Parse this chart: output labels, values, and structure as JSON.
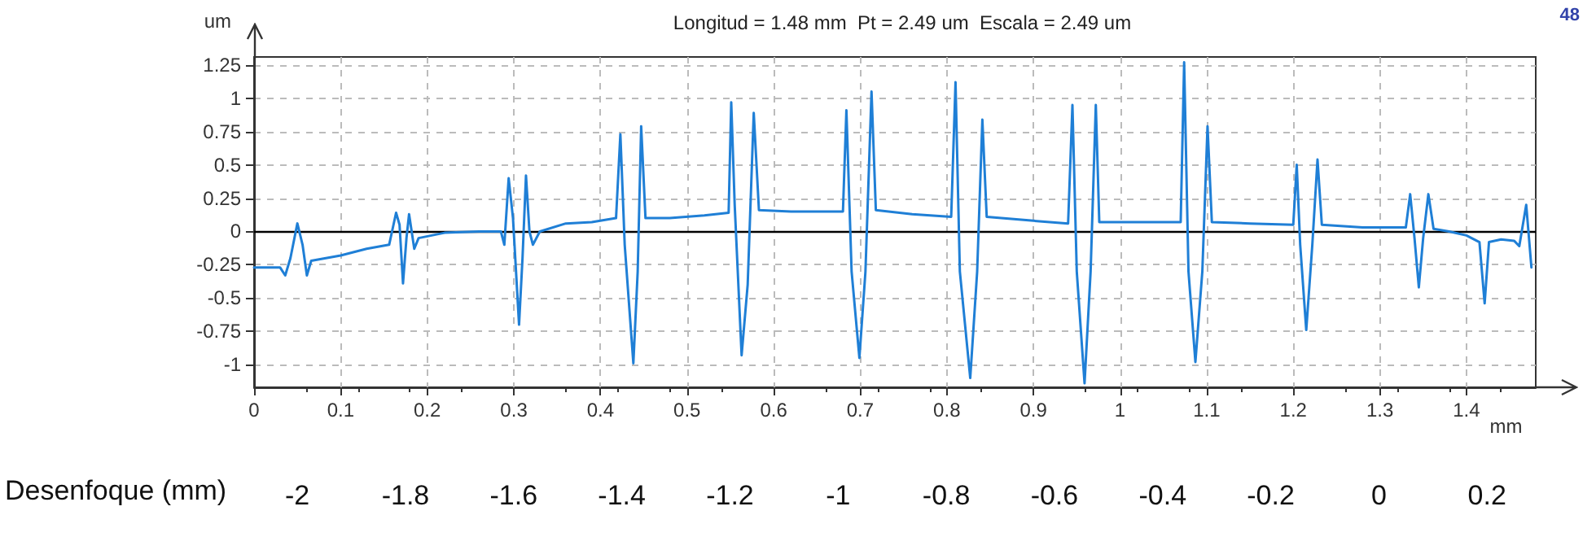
{
  "chart_data": {
    "type": "line",
    "title": "Longitud = 1.48 mm  Pt = 2.49 um  Escala = 2.49 um",
    "xlabel": "mm",
    "ylabel": "um",
    "x2label": "Desenfoque (mm)",
    "annotations": [
      "48"
    ],
    "x": [
      0,
      0.03,
      0.036,
      0.042,
      0.05,
      0.056,
      0.061,
      0.066,
      0.1,
      0.13,
      0.156,
      0.164,
      0.168,
      0.172,
      0.176,
      0.179,
      0.182,
      0.185,
      0.19,
      0.22,
      0.26,
      0.285,
      0.289,
      0.294,
      0.299,
      0.306,
      0.31,
      0.314,
      0.318,
      0.322,
      0.33,
      0.36,
      0.39,
      0.418,
      0.423,
      0.428,
      0.438,
      0.443,
      0.447,
      0.452,
      0.48,
      0.52,
      0.548,
      0.551,
      0.555,
      0.563,
      0.57,
      0.577,
      0.583,
      0.62,
      0.68,
      0.684,
      0.69,
      0.699,
      0.706,
      0.713,
      0.718,
      0.76,
      0.805,
      0.81,
      0.815,
      0.827,
      0.835,
      0.841,
      0.846,
      0.9,
      0.94,
      0.945,
      0.95,
      0.959,
      0.966,
      0.972,
      0.976,
      1.02,
      1.07,
      1.074,
      1.079,
      1.087,
      1.095,
      1.101,
      1.106,
      1.15,
      1.2,
      1.204,
      1.208,
      1.215,
      1.222,
      1.228,
      1.233,
      1.28,
      1.33,
      1.335,
      1.34,
      1.345,
      1.35,
      1.356,
      1.362,
      1.38,
      1.4,
      1.415,
      1.421,
      1.426,
      1.44,
      1.455,
      1.461,
      1.469,
      1.475
    ],
    "series": [
      {
        "color": "#1f7fd6",
        "values": [
          -0.27,
          -0.27,
          -0.33,
          -0.2,
          0.06,
          -0.1,
          -0.33,
          -0.22,
          -0.18,
          -0.13,
          -0.1,
          0.14,
          0.05,
          -0.39,
          -0.05,
          0.13,
          0.0,
          -0.13,
          -0.05,
          -0.01,
          0.0,
          0.0,
          -0.1,
          0.4,
          0.1,
          -0.7,
          -0.2,
          0.42,
          0.0,
          -0.1,
          0.0,
          0.06,
          0.07,
          0.1,
          0.73,
          -0.1,
          -0.99,
          -0.3,
          0.79,
          0.1,
          0.1,
          0.12,
          0.14,
          0.97,
          0.2,
          -0.93,
          -0.4,
          0.89,
          0.16,
          0.15,
          0.15,
          0.91,
          -0.3,
          -0.95,
          -0.3,
          1.05,
          0.16,
          0.13,
          0.11,
          1.12,
          -0.3,
          -1.1,
          -0.3,
          0.84,
          0.11,
          0.08,
          0.06,
          0.95,
          -0.3,
          -1.14,
          -0.3,
          0.95,
          0.07,
          0.07,
          0.07,
          1.27,
          -0.3,
          -0.98,
          -0.3,
          0.79,
          0.07,
          0.06,
          0.05,
          0.5,
          -0.1,
          -0.74,
          -0.1,
          0.54,
          0.05,
          0.03,
          0.03,
          0.28,
          -0.05,
          -0.42,
          -0.05,
          0.28,
          0.02,
          0.0,
          -0.03,
          -0.08,
          -0.54,
          -0.08,
          -0.06,
          -0.07,
          -0.11,
          0.2,
          -0.27
        ]
      }
    ],
    "xlim": [
      0,
      1.48
    ],
    "xticks": [
      0,
      0.1,
      0.2,
      0.3,
      0.4,
      0.5,
      0.6,
      0.7,
      0.8,
      0.9,
      1,
      1.1,
      1.2,
      1.3,
      1.4
    ],
    "ylim": [
      -1.17,
      1.31
    ],
    "yticks": [
      -1,
      -0.75,
      -0.5,
      -0.25,
      0,
      0.25,
      0.5,
      0.75,
      1,
      1.25
    ],
    "x2lim": [
      -2.08,
      0.29
    ],
    "x2ticks": [
      -2,
      -1.8,
      -1.6,
      -1.4,
      -1.2,
      -1,
      -0.8,
      -0.6,
      -0.4,
      -0.2,
      0,
      0.2
    ],
    "ref_lines": [
      {
        "axis": "y",
        "value": 0,
        "color": "#000000"
      }
    ],
    "grid": true,
    "marker": "none",
    "line_style": "solid"
  }
}
